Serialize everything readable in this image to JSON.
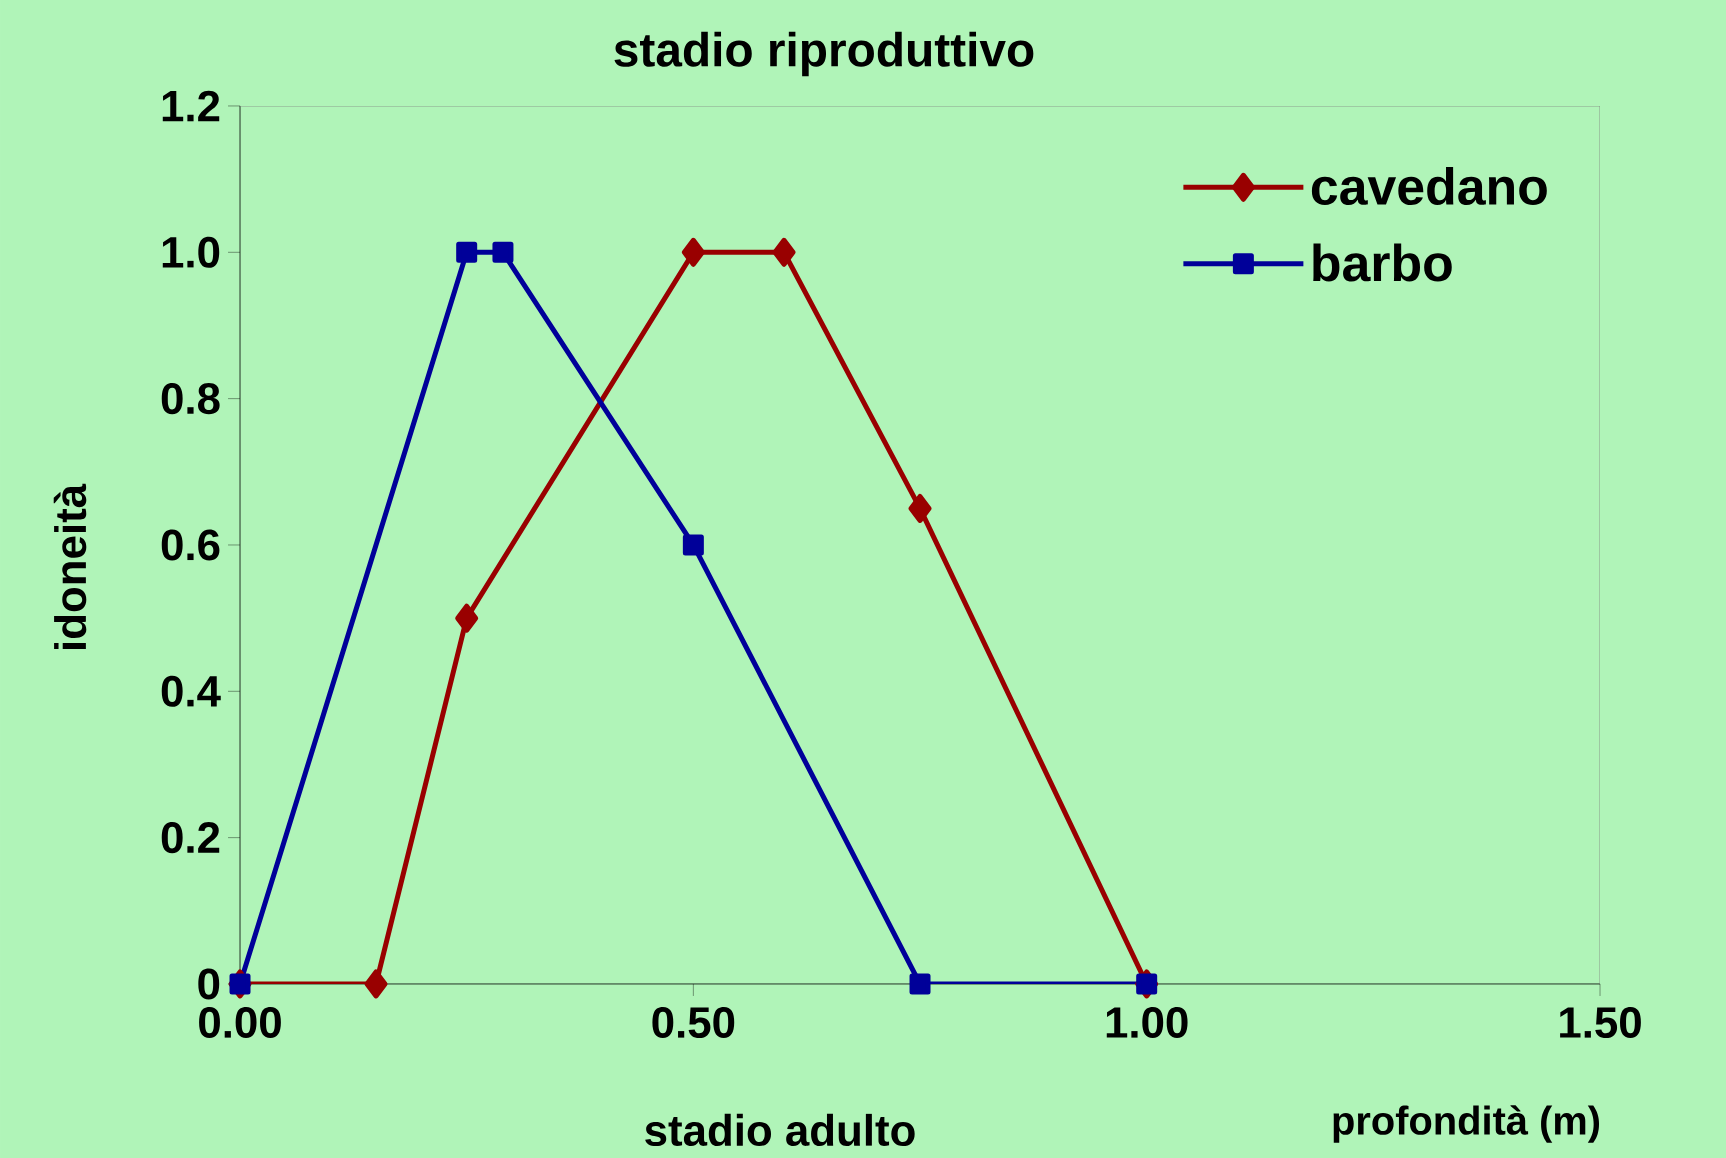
{
  "chart_data": {
    "type": "line",
    "title": "stadio riproduttivo",
    "xlabel": "profondità (m)",
    "ylabel": "idoneità",
    "annotations": [
      "stadio adulto"
    ],
    "xlim": [
      0,
      1.5
    ],
    "ylim": [
      0,
      1.2
    ],
    "xticks": [
      {
        "value": 0,
        "label": "0.00"
      },
      {
        "value": 0.5,
        "label": "0.50"
      },
      {
        "value": 1,
        "label": "1.00"
      },
      {
        "value": 1.5,
        "label": "1.50"
      }
    ],
    "yticks": [
      {
        "value": 0,
        "label": "0"
      },
      {
        "value": 0.2,
        "label": "0.2"
      },
      {
        "value": 0.4,
        "label": "0.4"
      },
      {
        "value": 0.6,
        "label": "0.6"
      },
      {
        "value": 0.8,
        "label": "0.8"
      },
      {
        "value": 1,
        "label": "1.0"
      },
      {
        "value": 1.2,
        "label": "1.2"
      }
    ],
    "legend": "top right",
    "grid": false,
    "series": [
      {
        "name": "cavedano",
        "color": "#990000",
        "marker": "diamond",
        "x": [
          0,
          0.15,
          0.25,
          0.5,
          0.6,
          0.75,
          1.0
        ],
        "values": [
          0,
          0,
          0.5,
          1.0,
          1.0,
          0.65,
          0
        ]
      },
      {
        "name": "barbo",
        "color": "#000099",
        "marker": "square",
        "x": [
          0,
          0.25,
          0.29,
          0.5,
          0.75,
          1.0
        ],
        "values": [
          0,
          1.0,
          1.0,
          0.6,
          0,
          0
        ]
      }
    ]
  }
}
